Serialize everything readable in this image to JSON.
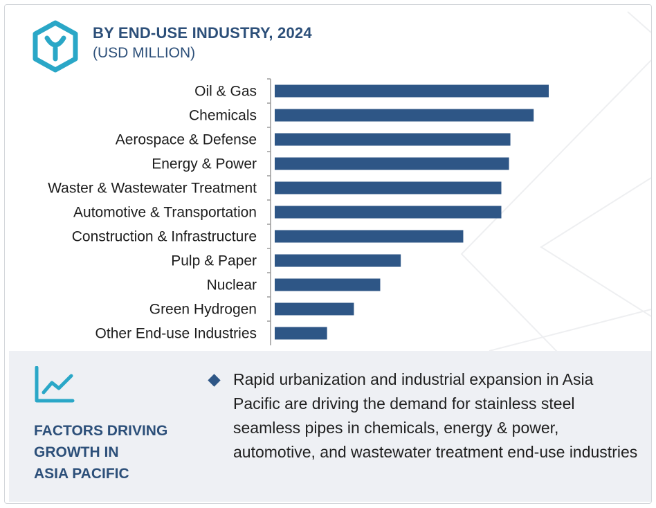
{
  "header": {
    "title": "BY END-USE INDUSTRY, 2024",
    "subtitle": "(USD MILLION)",
    "icon": "hexagon-y-logo-icon"
  },
  "colors": {
    "bar": "#2e5686",
    "title": "#2c4f79",
    "panel_bg": "#eef0f4"
  },
  "chart_data": {
    "type": "bar",
    "orientation": "horizontal",
    "title": "BY END-USE INDUSTRY, 2024",
    "subtitle": "(USD MILLION)",
    "xlabel": "",
    "ylabel": "",
    "value_axis_shown": false,
    "grid": false,
    "categories": [
      "Oil & Gas",
      "Chemicals",
      "Aerospace & Defense",
      "Energy & Power",
      "Waster & Wastewater Treatment",
      "Automotive & Transportation",
      "Construction & Infrastructure",
      "Pulp & Paper",
      "Nuclear",
      "Green Hydrogen",
      "Other End-use Industries"
    ],
    "values": [
      100,
      94.5,
      86,
      85.5,
      82.7,
      82.7,
      68.8,
      46,
      38.5,
      28.9,
      19.1
    ],
    "value_scale": "relative (no axis printed), longest bar = 100",
    "xlim": [
      0,
      100
    ]
  },
  "factors": {
    "icon": "trend-line-chart-icon",
    "title_lines": [
      "FACTORS DRIVING",
      "GROWTH IN",
      "ASIA PACIFIC"
    ],
    "bullet_icon": "diamond-bullet-icon",
    "text": "Rapid urbanization and industrial expansion in Asia Pacific are driving the demand for stainless steel seamless pipes in chemicals, energy & power, automotive, and wastewater treatment end-use industries"
  }
}
